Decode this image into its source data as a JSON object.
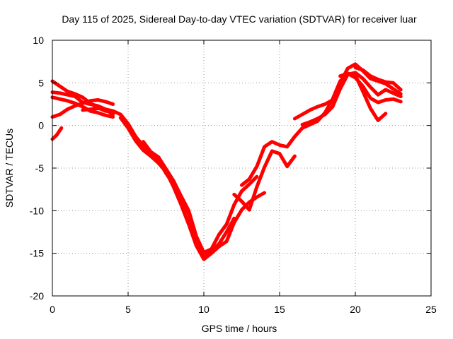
{
  "chart_data": {
    "type": "scatter",
    "title": "Day 115 of 2025, Sidereal Day-to-day VTEC variation (SDTVAR) for receiver luar",
    "xlabel": "GPS time / hours",
    "ylabel": "SDTVAR / TECUs",
    "xlim": [
      0,
      25
    ],
    "ylim": [
      -20,
      10
    ],
    "xticks": [
      0,
      5,
      10,
      15,
      20,
      25
    ],
    "yticks": [
      -20,
      -15,
      -10,
      -5,
      0,
      5,
      10
    ],
    "xtick_labels": [
      "0",
      "5",
      "10",
      "15",
      "20",
      "25"
    ],
    "ytick_labels": [
      "-20",
      "-15",
      "-10",
      "-5",
      "0",
      "5",
      "10"
    ],
    "grid": true,
    "color": "#ff0000",
    "series": [
      {
        "x": [
          0,
          0.5,
          1,
          1.5,
          2,
          2.5,
          3,
          3.5,
          4
        ],
        "y": [
          5.2,
          4.6,
          4.0,
          3.7,
          3.3,
          2.6,
          2.1,
          1.7,
          1.6
        ]
      },
      {
        "x": [
          0,
          0.5,
          1,
          1.5,
          2,
          2.5,
          3,
          3.5,
          4
        ],
        "y": [
          3.9,
          3.8,
          3.6,
          3.4,
          2.7,
          2.5,
          2.3,
          1.9,
          1.3
        ]
      },
      {
        "x": [
          0,
          0.5,
          1,
          1.5,
          2,
          2.5,
          3,
          3.5,
          4
        ],
        "y": [
          3.3,
          3.1,
          2.9,
          2.6,
          2.2,
          1.7,
          1.5,
          1.2,
          1.0
        ]
      },
      {
        "x": [
          0,
          0.5,
          1,
          1.5,
          2,
          2.5,
          3,
          3.5,
          4
        ],
        "y": [
          1.0,
          1.3,
          1.9,
          2.3,
          2.6,
          2.9,
          3.0,
          2.8,
          2.5
        ]
      },
      {
        "x": [
          0,
          0.3,
          0.6
        ],
        "y": [
          -1.6,
          -1.1,
          -0.3
        ]
      },
      {
        "x": [
          2,
          2.5,
          3,
          3.5,
          4,
          4.5,
          5,
          5.5,
          6,
          6.5,
          7,
          7.5,
          8,
          8.5,
          9,
          9.5,
          10,
          10.5,
          11,
          11.5,
          12
        ],
        "y": [
          1.8,
          1.9,
          2.0,
          1.9,
          1.7,
          1.3,
          0.2,
          -1.3,
          -2.4,
          -3.2,
          -4.1,
          -5.6,
          -6.9,
          -8.7,
          -10.4,
          -13.2,
          -15.3,
          -14.8,
          -13.9,
          -12.5,
          -10.9
        ]
      },
      {
        "x": [
          4.5,
          5,
          5.5,
          6,
          6.5,
          7,
          7.5,
          8,
          8.5,
          9,
          9.5,
          10,
          10.5,
          11,
          11.5,
          12,
          12.5,
          13,
          13.5,
          14
        ],
        "y": [
          0.9,
          -0.3,
          -1.8,
          -2.9,
          -3.6,
          -4.4,
          -5.4,
          -7.2,
          -9.3,
          -11.6,
          -14.1,
          -15.7,
          -15.0,
          -14.2,
          -13.6,
          -11.4,
          -9.9,
          -9.0,
          -8.4,
          -7.9
        ]
      },
      {
        "x": [
          6,
          6.5,
          7,
          7.5,
          8,
          8.5,
          9,
          9.5,
          10,
          10.5,
          11,
          11.5,
          12,
          12.5,
          13,
          13.5
        ],
        "y": [
          -1.9,
          -3.1,
          -3.7,
          -5.1,
          -6.5,
          -8.3,
          -10.0,
          -13.0,
          -14.9,
          -14.5,
          -12.8,
          -11.6,
          -9.3,
          -7.7,
          -6.9,
          -6.0
        ]
      },
      {
        "x": [
          12,
          12.5,
          13,
          13.5,
          14,
          14.5,
          15,
          15.5,
          16
        ],
        "y": [
          -8.1,
          -8.9,
          -9.9,
          -7.2,
          -4.9,
          -3.0,
          -3.3,
          -4.8,
          -3.6
        ]
      },
      {
        "x": [
          12.5,
          13,
          13.5,
          14,
          14.5,
          15,
          15.5,
          16,
          16.5,
          17,
          17.5,
          18,
          18.5,
          19,
          19.5,
          20,
          20.5,
          21,
          21.5,
          22,
          22.5,
          23
        ],
        "y": [
          -7.0,
          -6.3,
          -4.8,
          -2.5,
          -1.9,
          -2.3,
          -2.5,
          -1.3,
          -0.3,
          0.1,
          0.5,
          1.5,
          3.1,
          5.2,
          6.1,
          5.6,
          4.6,
          3.2,
          2.7,
          3.0,
          3.1,
          2.8
        ]
      },
      {
        "x": [
          16,
          16.5,
          17,
          17.5,
          18,
          18.5,
          19,
          19.5,
          20,
          20.5,
          21,
          21.5,
          22,
          22.5,
          23
        ],
        "y": [
          0.8,
          1.3,
          1.8,
          2.2,
          2.5,
          3.0,
          5.0,
          6.7,
          7.2,
          6.4,
          5.5,
          5.2,
          4.9,
          4.3,
          3.7
        ]
      },
      {
        "x": [
          16.5,
          17,
          17.5,
          18,
          18.5,
          19,
          19.5,
          20,
          20.5,
          21,
          21.5,
          22,
          22.5,
          23
        ],
        "y": [
          0.1,
          0.4,
          0.8,
          1.3,
          2.2,
          4.3,
          6.0,
          6.2,
          5.5,
          4.5,
          3.6,
          4.2,
          3.8,
          3.4
        ]
      },
      {
        "x": [
          19,
          19.5,
          20,
          20.5,
          21,
          21.5,
          22
        ],
        "y": [
          5.8,
          6.1,
          5.9,
          4.0,
          2.0,
          0.6,
          1.4
        ]
      },
      {
        "x": [
          20,
          20.5,
          21,
          21.5,
          22,
          22.5,
          23
        ],
        "y": [
          6.8,
          6.5,
          5.8,
          5.4,
          5.1,
          5.0,
          4.2
        ]
      }
    ]
  }
}
